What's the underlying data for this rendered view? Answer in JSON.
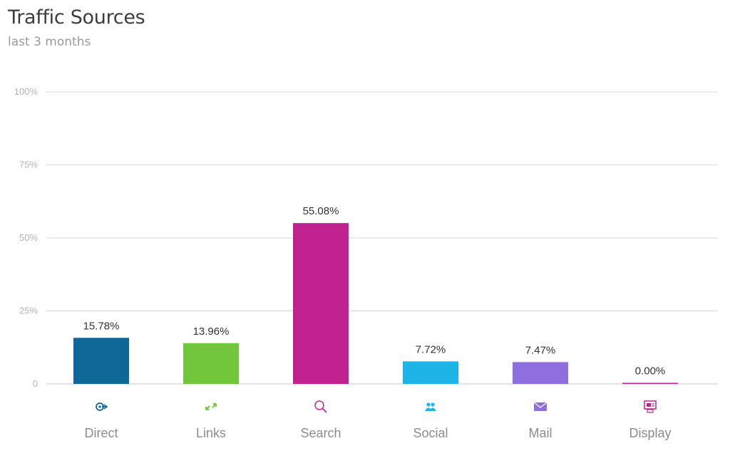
{
  "header": {
    "title": "Traffic Sources",
    "subtitle": "last 3 months"
  },
  "chart_data": {
    "type": "bar",
    "title": "Traffic Sources",
    "subtitle": "last 3 months",
    "xlabel": "",
    "ylabel": "",
    "ylim": [
      0,
      100
    ],
    "yticks": [
      {
        "value": 0,
        "label": "0"
      },
      {
        "value": 25,
        "label": "25%"
      },
      {
        "value": 50,
        "label": "50%"
      },
      {
        "value": 75,
        "label": "75%"
      },
      {
        "value": 100,
        "label": "100%"
      }
    ],
    "grid": true,
    "legend": "none",
    "categories": [
      "Direct",
      "Links",
      "Search",
      "Social",
      "Mail",
      "Display"
    ],
    "values": [
      15.78,
      13.96,
      55.08,
      7.72,
      7.47,
      0.0
    ],
    "data_labels": [
      "15.78%",
      "13.96%",
      "55.08%",
      "7.72%",
      "7.47%",
      "0.00%"
    ],
    "colors": [
      "#0f6797",
      "#72c63b",
      "#c0238f",
      "#1eb4e8",
      "#8f6fe0",
      "#c0238f"
    ],
    "icons": [
      "direct-icon",
      "links-icon",
      "search-icon",
      "social-icon",
      "mail-icon",
      "display-icon"
    ]
  }
}
